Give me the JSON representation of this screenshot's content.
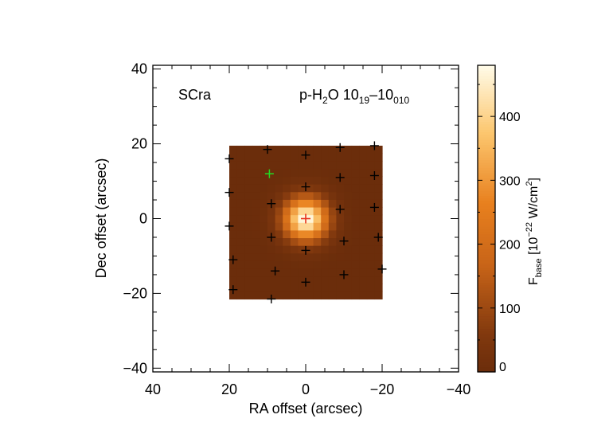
{
  "chart_data": {
    "type": "heatmap",
    "source_label": "SCra",
    "line_label": {
      "species": "p-H",
      "species_sub": "2",
      "species_tail": "O 10",
      "upper_sub": "19",
      "dash": "–10",
      "lower_sub": "010"
    },
    "xlabel": "RA offset (arcsec)",
    "ylabel": "Dec offset (arcsec)",
    "xlim": [
      40,
      -40
    ],
    "ylim": [
      -41,
      41
    ],
    "xticks": [
      40,
      20,
      0,
      -20,
      -40
    ],
    "yticks": [
      40,
      20,
      0,
      -20,
      -40
    ],
    "xtick_labels": [
      "40",
      "20",
      "0",
      "−20",
      "−40"
    ],
    "ytick_labels": [
      "40",
      "20",
      "0",
      "−20",
      "−40"
    ],
    "map_extent": {
      "ra": [
        20,
        -20
      ],
      "dec": [
        -21.5,
        19.5
      ]
    },
    "emission": {
      "center": [
        0,
        0
      ],
      "peak": 480,
      "fwhm_arcsec": 9.4
    },
    "colorbar": {
      "range": [
        0,
        480
      ],
      "ticks": [
        0,
        100,
        200,
        300,
        400
      ],
      "tick_labels": [
        "0",
        "100",
        "200",
        "300",
        "400"
      ],
      "label_main": "F",
      "label_sub": "base",
      "label_open": " [10",
      "label_exp": "−22",
      "label_unit": " W/cm",
      "label_exp2": "2",
      "label_close": "]"
    },
    "spaxels": [
      [
        20,
        16
      ],
      [
        10,
        18.5
      ],
      [
        0,
        17
      ],
      [
        -9,
        19
      ],
      [
        -18,
        19.5
      ],
      [
        20,
        7
      ],
      [
        9,
        4
      ],
      [
        0,
        8.5
      ],
      [
        -9,
        11
      ],
      [
        -18,
        11.5
      ],
      [
        20,
        -2
      ],
      [
        9,
        -5
      ],
      [
        0,
        -8.5
      ],
      [
        -9,
        2.5
      ],
      [
        -18,
        3
      ],
      [
        19,
        -11
      ],
      [
        8,
        -14
      ],
      [
        0,
        -17
      ],
      [
        -10,
        -6
      ],
      [
        -19,
        -5
      ],
      [
        19,
        -19
      ],
      [
        9,
        -21.5
      ],
      [
        -10,
        -15
      ],
      [
        -20,
        -13.5
      ]
    ],
    "central_marker": [
      0,
      0
    ],
    "reference_marker": [
      9.5,
      12
    ],
    "colors": {
      "central_marker": "#e8321e",
      "reference_marker": "#22dd22",
      "spaxel_marker": "#000000",
      "cmap_low": "#6b2d0b",
      "cmap_mid": "#e8801e",
      "cmap_high": "#fffbe8"
    }
  }
}
